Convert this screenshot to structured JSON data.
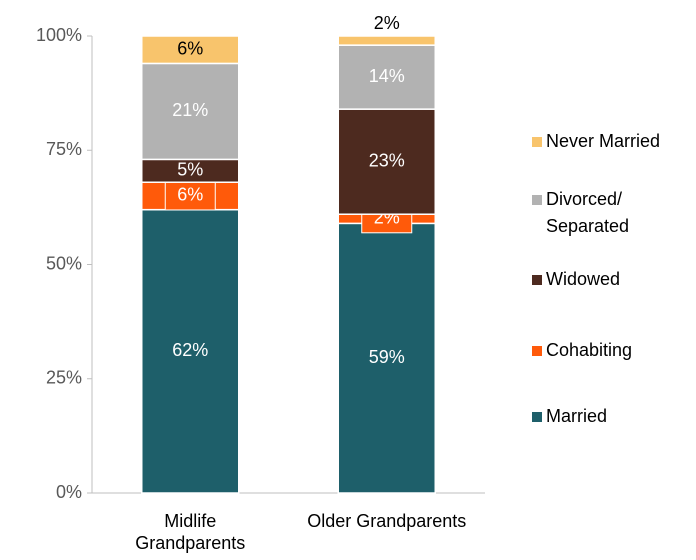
{
  "chart_data": {
    "type": "stacked_bar",
    "categories": [
      "Midlife Grandparents",
      "Older Grandparents"
    ],
    "series": [
      {
        "name": "Married",
        "color": "#1e5f6a",
        "values": [
          62,
          59
        ],
        "value_labels": [
          "62%",
          "59%"
        ]
      },
      {
        "name": "Cohabiting",
        "color": "#ff5a0a",
        "values": [
          6,
          2
        ],
        "value_labels": [
          "6%",
          "2%"
        ]
      },
      {
        "name": "Widowed",
        "color": "#4d2a1f",
        "values": [
          5,
          23
        ],
        "value_labels": [
          "5%",
          "23%"
        ]
      },
      {
        "name": "Divorced/ Separated",
        "color": "#b2b2b2",
        "values": [
          21,
          14
        ],
        "value_labels": [
          "21%",
          "14%"
        ]
      },
      {
        "name": "Never Married",
        "color": "#f8c46c",
        "values": [
          6,
          2
        ],
        "value_labels": [
          "6%",
          "2%"
        ]
      }
    ],
    "ylim": [
      0,
      100
    ],
    "yticks": [
      {
        "value": 0,
        "label": "0%"
      },
      {
        "value": 25,
        "label": "25%"
      },
      {
        "value": 50,
        "label": "50%"
      },
      {
        "value": 75,
        "label": "75%"
      },
      {
        "value": 100,
        "label": "100%"
      }
    ],
    "legend": "right"
  }
}
